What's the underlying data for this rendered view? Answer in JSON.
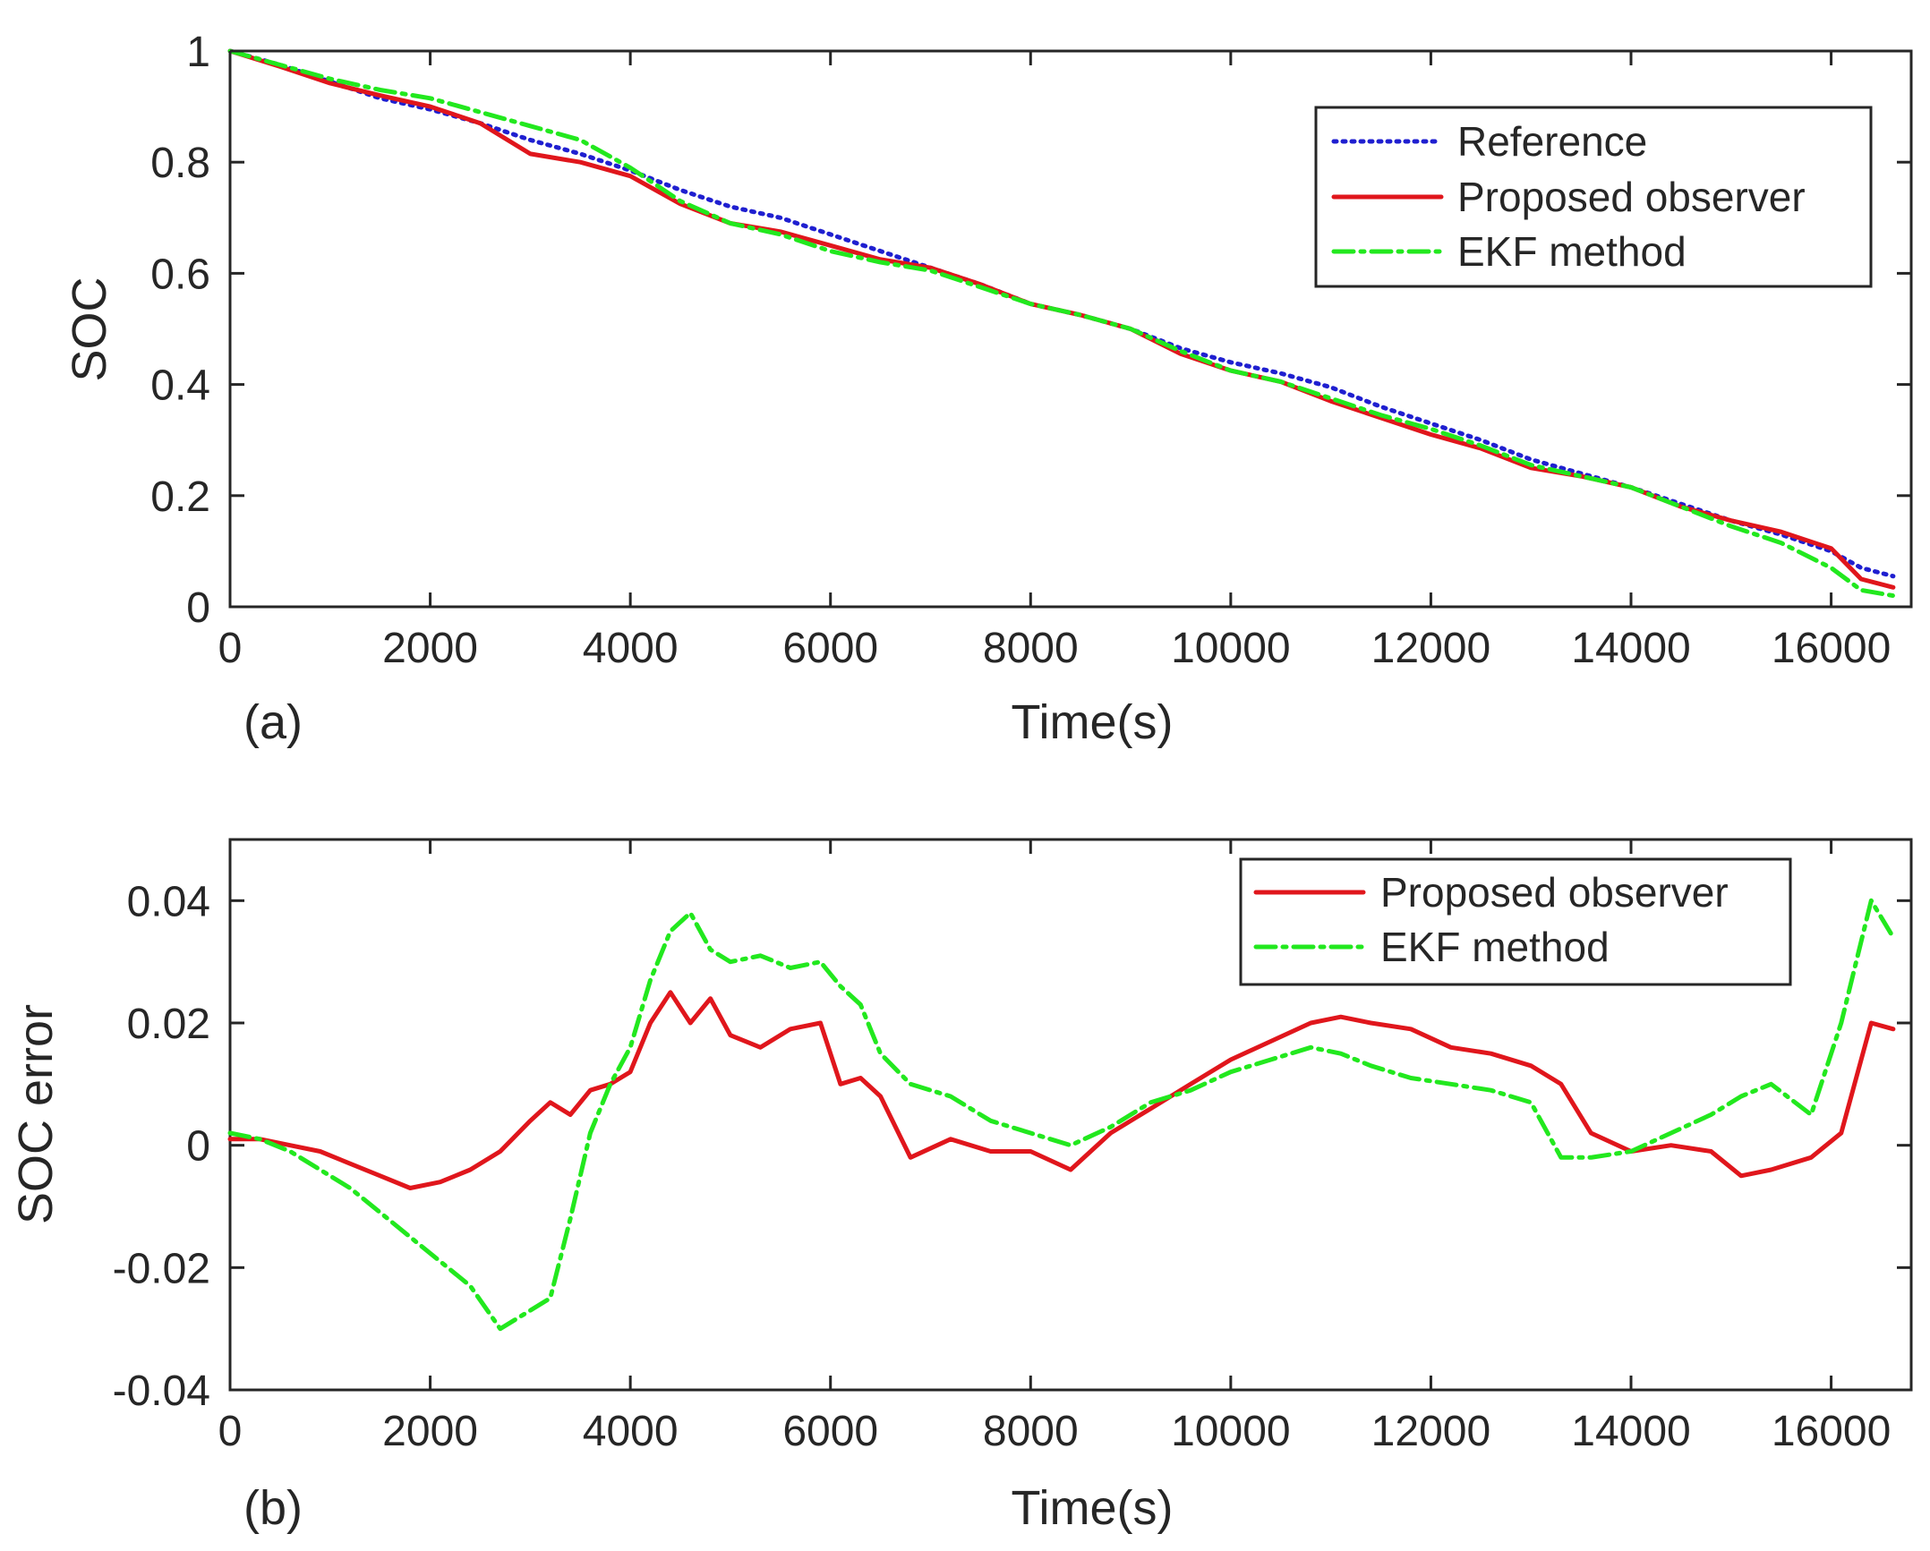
{
  "chart_data": [
    {
      "type": "line",
      "panel_label": "(a)",
      "xlabel": "Time(s)",
      "ylabel": "SOC",
      "xlim": [
        0,
        16800
      ],
      "ylim": [
        0,
        1
      ],
      "xticks": [
        0,
        2000,
        4000,
        6000,
        8000,
        10000,
        12000,
        14000,
        16000
      ],
      "xtick_labels": [
        "0",
        "2000",
        "4000",
        "6000",
        "8000",
        "10000",
        "12000",
        "14000",
        "16000"
      ],
      "yticks": [
        0,
        0.2,
        0.4,
        0.6,
        0.8,
        1
      ],
      "ytick_labels": [
        "0",
        "0.2",
        "0.4",
        "0.6",
        "0.8",
        "1"
      ],
      "legend_position": "top-right",
      "series": [
        {
          "name": "Reference",
          "color": "#1f1fd0",
          "style": "dotted",
          "x": [
            0,
            500,
            1000,
            1500,
            2000,
            2500,
            3000,
            3500,
            4000,
            4500,
            5000,
            5500,
            6000,
            6500,
            7000,
            7500,
            8000,
            8500,
            9000,
            9500,
            10000,
            10500,
            11000,
            11500,
            12000,
            12500,
            13000,
            13500,
            14000,
            14500,
            15000,
            15500,
            16000,
            16300,
            16620
          ],
          "values": [
            1.0,
            0.975,
            0.945,
            0.915,
            0.895,
            0.87,
            0.84,
            0.815,
            0.785,
            0.75,
            0.72,
            0.7,
            0.67,
            0.64,
            0.61,
            0.58,
            0.545,
            0.525,
            0.5,
            0.465,
            0.44,
            0.42,
            0.395,
            0.36,
            0.33,
            0.3,
            0.265,
            0.24,
            0.215,
            0.185,
            0.155,
            0.13,
            0.1,
            0.07,
            0.055
          ]
        },
        {
          "name": "Proposed observer",
          "color": "#e0161c",
          "style": "solid",
          "x": [
            0,
            500,
            1000,
            1500,
            2000,
            2500,
            3000,
            3500,
            4000,
            4500,
            5000,
            5500,
            6000,
            6500,
            7000,
            7500,
            8000,
            8500,
            9000,
            9500,
            10000,
            10500,
            11000,
            11500,
            12000,
            12500,
            13000,
            13500,
            14000,
            14500,
            15000,
            15500,
            16000,
            16300,
            16620
          ],
          "values": [
            1.0,
            0.972,
            0.942,
            0.92,
            0.9,
            0.87,
            0.815,
            0.8,
            0.775,
            0.725,
            0.69,
            0.675,
            0.65,
            0.625,
            0.61,
            0.58,
            0.545,
            0.525,
            0.5,
            0.455,
            0.425,
            0.405,
            0.37,
            0.34,
            0.31,
            0.285,
            0.25,
            0.235,
            0.215,
            0.18,
            0.155,
            0.135,
            0.105,
            0.05,
            0.035
          ]
        },
        {
          "name": "EKF method",
          "color": "#22e81e",
          "style": "dashdot",
          "x": [
            0,
            500,
            1000,
            1500,
            2000,
            2500,
            3000,
            3500,
            4000,
            4500,
            5000,
            5500,
            6000,
            6500,
            7000,
            7500,
            8000,
            8500,
            9000,
            9500,
            10000,
            10500,
            11000,
            11500,
            12000,
            12500,
            13000,
            13500,
            14000,
            14500,
            15000,
            15500,
            16000,
            16300,
            16620
          ],
          "values": [
            1.0,
            0.975,
            0.95,
            0.93,
            0.915,
            0.89,
            0.865,
            0.84,
            0.79,
            0.73,
            0.69,
            0.67,
            0.64,
            0.62,
            0.605,
            0.575,
            0.545,
            0.525,
            0.5,
            0.46,
            0.425,
            0.405,
            0.375,
            0.345,
            0.32,
            0.29,
            0.255,
            0.235,
            0.215,
            0.18,
            0.145,
            0.115,
            0.07,
            0.03,
            0.02
          ]
        }
      ]
    },
    {
      "type": "line",
      "panel_label": "(b)",
      "xlabel": "Time(s)",
      "ylabel": "SOC error",
      "xlim": [
        0,
        16800
      ],
      "ylim": [
        -0.04,
        0.05
      ],
      "xticks": [
        0,
        2000,
        4000,
        6000,
        8000,
        10000,
        12000,
        14000,
        16000
      ],
      "xtick_labels": [
        "0",
        "2000",
        "4000",
        "6000",
        "8000",
        "10000",
        "12000",
        "14000",
        "16000"
      ],
      "yticks": [
        -0.04,
        -0.02,
        0,
        0.02,
        0.04
      ],
      "ytick_labels": [
        "-0.04",
        "-0.02",
        "0",
        "0.02",
        "0.04"
      ],
      "legend_position": "top-right",
      "series": [
        {
          "name": "Proposed observer",
          "color": "#e0161c",
          "style": "solid",
          "x": [
            0,
            300,
            600,
            900,
            1200,
            1500,
            1800,
            2100,
            2400,
            2700,
            3000,
            3200,
            3400,
            3600,
            3800,
            4000,
            4200,
            4400,
            4600,
            4800,
            5000,
            5300,
            5600,
            5900,
            6100,
            6300,
            6500,
            6800,
            7200,
            7600,
            8000,
            8400,
            8800,
            9200,
            9600,
            10000,
            10400,
            10800,
            11100,
            11400,
            11800,
            12200,
            12600,
            13000,
            13300,
            13600,
            14000,
            14400,
            14800,
            15100,
            15400,
            15800,
            16100,
            16400,
            16620
          ],
          "values": [
            0.001,
            0.001,
            0.0,
            -0.001,
            -0.003,
            -0.005,
            -0.007,
            -0.006,
            -0.004,
            -0.001,
            0.004,
            0.007,
            0.005,
            0.009,
            0.01,
            0.012,
            0.02,
            0.025,
            0.02,
            0.024,
            0.018,
            0.016,
            0.019,
            0.02,
            0.01,
            0.011,
            0.008,
            -0.002,
            0.001,
            -0.001,
            -0.001,
            -0.004,
            0.002,
            0.006,
            0.01,
            0.014,
            0.017,
            0.02,
            0.021,
            0.02,
            0.019,
            0.016,
            0.015,
            0.013,
            0.01,
            0.002,
            -0.001,
            0.0,
            -0.001,
            -0.005,
            -0.004,
            -0.002,
            0.002,
            0.02,
            0.019
          ]
        },
        {
          "name": "EKF method",
          "color": "#22e81e",
          "style": "dashdot",
          "x": [
            0,
            300,
            600,
            900,
            1200,
            1500,
            1800,
            2100,
            2400,
            2700,
            3000,
            3200,
            3400,
            3600,
            3800,
            4000,
            4200,
            4400,
            4600,
            4800,
            5000,
            5300,
            5600,
            5900,
            6100,
            6300,
            6500,
            6800,
            7200,
            7600,
            8000,
            8400,
            8800,
            9200,
            9600,
            10000,
            10400,
            10800,
            11100,
            11400,
            11800,
            12200,
            12600,
            13000,
            13300,
            13600,
            14000,
            14400,
            14800,
            15100,
            15400,
            15800,
            16100,
            16400,
            16620
          ],
          "values": [
            0.002,
            0.001,
            -0.001,
            -0.004,
            -0.007,
            -0.011,
            -0.015,
            -0.019,
            -0.023,
            -0.03,
            -0.027,
            -0.025,
            -0.012,
            0.002,
            0.01,
            0.016,
            0.027,
            0.035,
            0.038,
            0.032,
            0.03,
            0.031,
            0.029,
            0.03,
            0.026,
            0.023,
            0.015,
            0.01,
            0.008,
            0.004,
            0.002,
            0.0,
            0.003,
            0.007,
            0.009,
            0.012,
            0.014,
            0.016,
            0.015,
            0.013,
            0.011,
            0.01,
            0.009,
            0.007,
            -0.002,
            -0.002,
            -0.001,
            0.002,
            0.005,
            0.008,
            0.01,
            0.005,
            0.02,
            0.04,
            0.034
          ]
        }
      ]
    }
  ]
}
